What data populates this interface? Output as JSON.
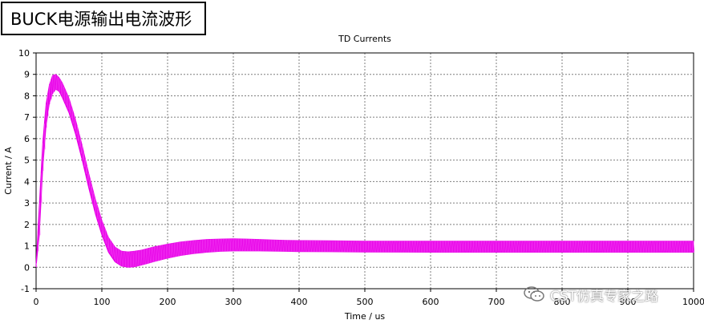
{
  "label_box": {
    "text": "BUCK电源输出电流波形"
  },
  "watermark": {
    "text": "CST仿真专家之路",
    "icon": "wechat-icon"
  },
  "colors": {
    "series": "#e600e6",
    "grid": "#7f7f7f",
    "axis": "#000000"
  },
  "chart_data": {
    "type": "line",
    "title": "TD Currents",
    "xlabel": "Time / us",
    "ylabel": "Current / A",
    "xlim": [
      0,
      1000
    ],
    "ylim": [
      -1,
      10
    ],
    "xticks": [
      0,
      100,
      200,
      300,
      400,
      500,
      600,
      700,
      800,
      900,
      1000
    ],
    "yticks": [
      -1,
      0,
      1,
      2,
      3,
      4,
      5,
      6,
      7,
      8,
      9,
      10
    ],
    "grid": true,
    "series": [
      {
        "color": "#e600e6",
        "x": [
          0,
          5,
          10,
          15,
          20,
          25,
          30,
          35,
          40,
          50,
          60,
          70,
          80,
          90,
          100,
          110,
          120,
          130,
          140,
          150,
          160,
          170,
          180,
          200,
          220,
          240,
          260,
          280,
          300,
          320,
          340,
          360,
          380,
          400,
          450,
          500,
          600,
          700,
          800,
          900,
          1000
        ],
        "upper": [
          0.2,
          3.0,
          5.8,
          7.6,
          8.5,
          8.95,
          9.0,
          8.85,
          8.6,
          7.9,
          6.9,
          5.7,
          4.4,
          3.2,
          2.2,
          1.4,
          0.95,
          0.75,
          0.72,
          0.75,
          0.8,
          0.88,
          0.96,
          1.08,
          1.18,
          1.25,
          1.3,
          1.32,
          1.33,
          1.32,
          1.3,
          1.28,
          1.26,
          1.25,
          1.24,
          1.22,
          1.22,
          1.22,
          1.22,
          1.22,
          1.22
        ],
        "lower": [
          0.0,
          1.5,
          4.5,
          6.5,
          7.6,
          8.1,
          8.3,
          8.2,
          7.9,
          7.2,
          6.2,
          5.0,
          3.7,
          2.5,
          1.5,
          0.7,
          0.25,
          0.05,
          0.0,
          0.02,
          0.1,
          0.18,
          0.27,
          0.42,
          0.55,
          0.64,
          0.7,
          0.74,
          0.76,
          0.76,
          0.76,
          0.75,
          0.74,
          0.73,
          0.72,
          0.71,
          0.7,
          0.7,
          0.7,
          0.7,
          0.7
        ]
      }
    ]
  }
}
